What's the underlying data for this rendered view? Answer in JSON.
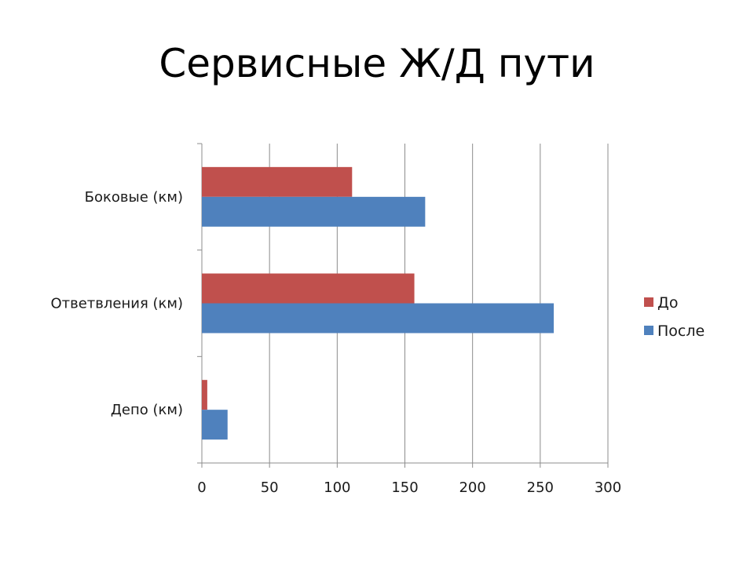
{
  "slide": {
    "title": "Сервисные Ж/Д пути"
  },
  "chart_data": {
    "type": "bar",
    "orientation": "horizontal",
    "categories": [
      "Боковые (км)",
      "Ответвления (км)",
      "Депо (км)"
    ],
    "series": [
      {
        "name": "До",
        "color": "#C0504D",
        "values": [
          111,
          157,
          4
        ]
      },
      {
        "name": "После",
        "color": "#4F81BD",
        "values": [
          165,
          260,
          19
        ]
      }
    ],
    "xlim": [
      0,
      300
    ],
    "xticks": [
      0,
      50,
      100,
      150,
      200,
      250,
      300
    ],
    "grid": "vertical",
    "legend_position": "right",
    "title": "",
    "xlabel": "",
    "ylabel": ""
  }
}
